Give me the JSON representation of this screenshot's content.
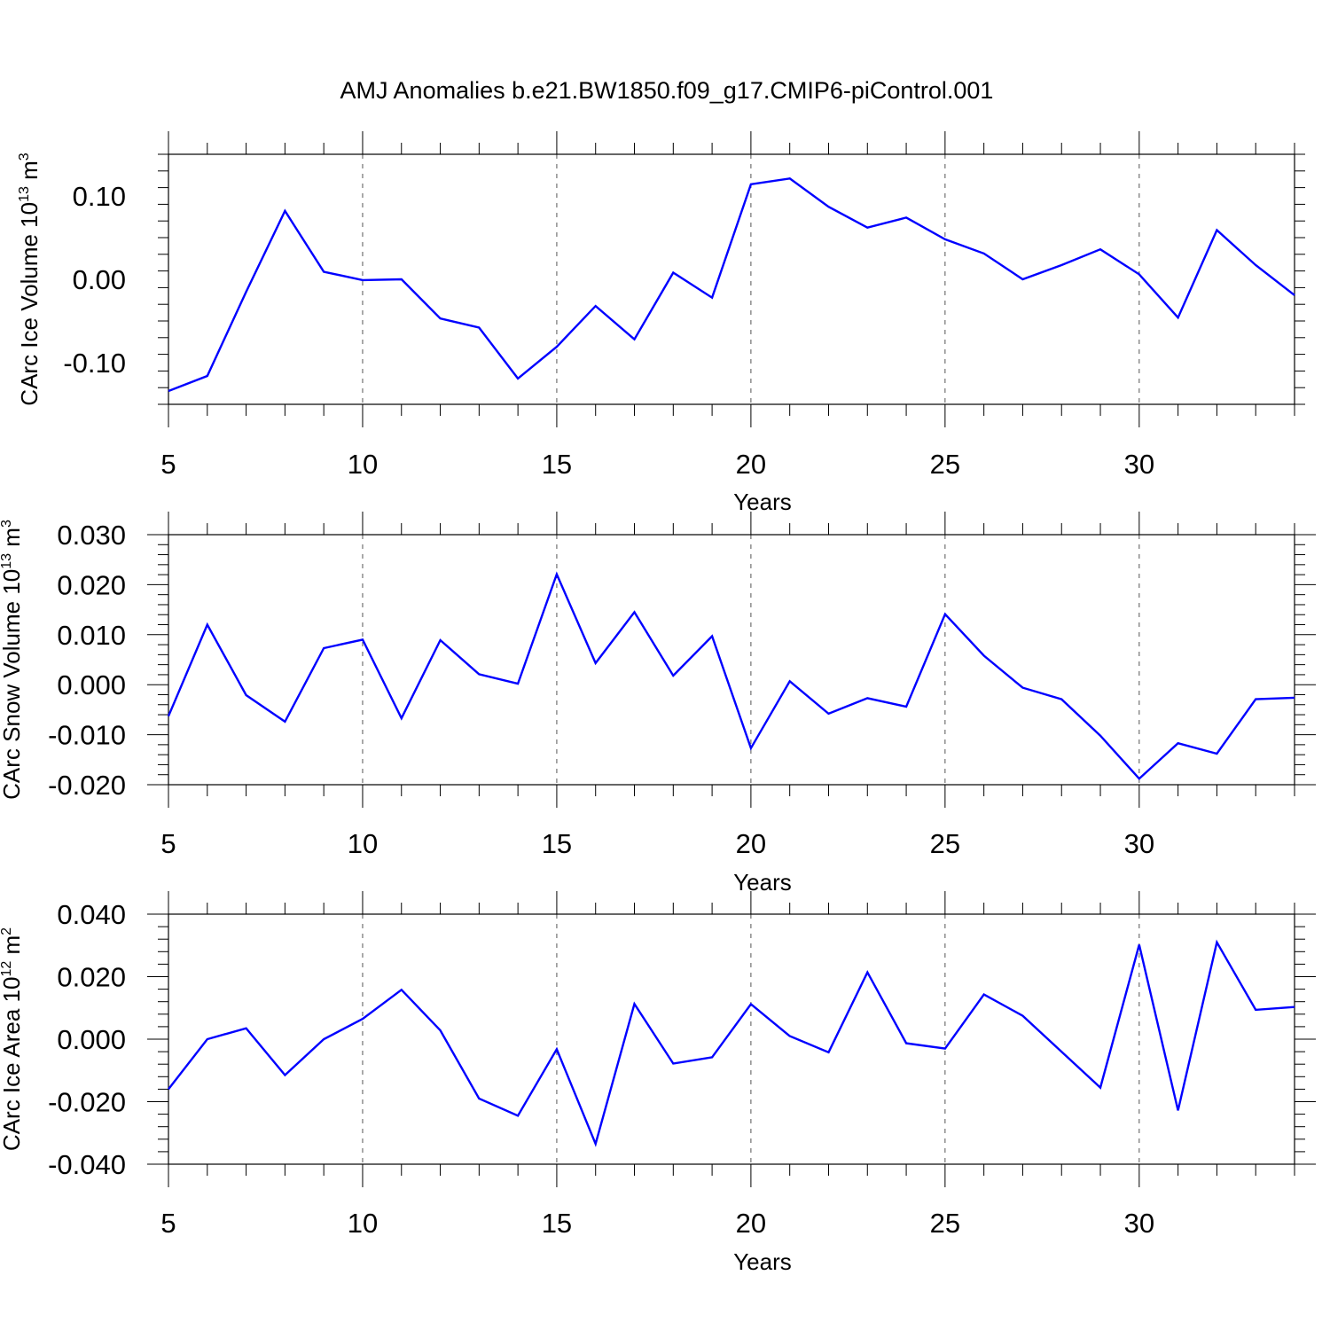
{
  "title": "AMJ Anomalies b.e21.BW1850.f09_g17.CMIP6-piControl.001",
  "chart_data": [
    {
      "type": "line",
      "title": "AMJ Anomalies b.e21.BW1850.f09_g17.CMIP6-piControl.001",
      "xlabel": "Years",
      "ylabel": {
        "prefix": "CArc Ice Volume 10",
        "exp": "13",
        "mid": " m",
        "unit_exp": "3"
      },
      "xlim": [
        5,
        34
      ],
      "ylim": [
        -0.15,
        0.15
      ],
      "xticks": [
        "5",
        "10",
        "15",
        "20",
        "25",
        "30"
      ],
      "xtick_values": [
        5,
        10,
        15,
        20,
        25,
        30
      ],
      "yticks": [
        "-0.10",
        "0.00",
        "0.10"
      ],
      "ytick_values": [
        -0.1,
        0.0,
        0.1
      ],
      "y_minor_step": 0.02,
      "x_minor_step": 1,
      "grid": "vertical dashed at major x ticks",
      "line_color": "#0000ff",
      "x": [
        5,
        6,
        7,
        8,
        9,
        10,
        11,
        12,
        13,
        14,
        15,
        16,
        17,
        18,
        19,
        20,
        21,
        22,
        23,
        24,
        25,
        26,
        27,
        28,
        29,
        30,
        31,
        32,
        33,
        34
      ],
      "values": [
        -0.134,
        -0.116,
        -0.015,
        0.082,
        0.009,
        -0.001,
        0.0,
        -0.047,
        -0.058,
        -0.119,
        -0.081,
        -0.032,
        -0.072,
        0.008,
        -0.022,
        0.114,
        0.121,
        0.087,
        0.062,
        0.074,
        0.048,
        0.031,
        0.0,
        0.017,
        0.036,
        0.006,
        -0.046,
        0.059,
        0.017,
        -0.019
      ]
    },
    {
      "type": "line",
      "xlabel": "Years",
      "ylabel": {
        "prefix": "CArc Snow Volume 10",
        "exp": "13",
        "mid": " m",
        "unit_exp": "3"
      },
      "xlim": [
        5,
        34
      ],
      "ylim": [
        -0.02,
        0.03
      ],
      "xticks": [
        "5",
        "10",
        "15",
        "20",
        "25",
        "30"
      ],
      "xtick_values": [
        5,
        10,
        15,
        20,
        25,
        30
      ],
      "yticks": [
        "-0.020",
        "-0.010",
        "0.000",
        "0.010",
        "0.020",
        "0.030"
      ],
      "ytick_values": [
        -0.02,
        -0.01,
        0.0,
        0.01,
        0.02,
        0.03
      ],
      "y_minor_step": 0.002,
      "x_minor_step": 1,
      "grid": "vertical dashed at major x ticks",
      "line_color": "#0000ff",
      "x": [
        5,
        6,
        7,
        8,
        9,
        10,
        11,
        12,
        13,
        14,
        15,
        16,
        17,
        18,
        19,
        20,
        21,
        22,
        23,
        24,
        25,
        26,
        27,
        28,
        29,
        30,
        31,
        32,
        33,
        34
      ],
      "values": [
        -0.0063,
        0.012,
        -0.0021,
        -0.0074,
        0.0073,
        0.009,
        -0.0067,
        0.0089,
        0.0021,
        0.0002,
        0.0221,
        0.0043,
        0.0145,
        0.0018,
        0.0097,
        -0.0127,
        0.0007,
        -0.0058,
        -0.0027,
        -0.0044,
        0.0141,
        0.0058,
        -0.0006,
        -0.0029,
        -0.0102,
        -0.0188,
        -0.0117,
        -0.0138,
        -0.0029,
        -0.0026
      ]
    },
    {
      "type": "line",
      "xlabel": "Years",
      "ylabel": {
        "prefix": "CArc Ice Area 10",
        "exp": "12",
        "mid": " m",
        "unit_exp": "2"
      },
      "xlim": [
        5,
        34
      ],
      "ylim": [
        -0.04,
        0.04
      ],
      "xticks": [
        "5",
        "10",
        "15",
        "20",
        "25",
        "30"
      ],
      "xtick_values": [
        5,
        10,
        15,
        20,
        25,
        30
      ],
      "yticks": [
        "-0.040",
        "-0.020",
        "0.000",
        "0.020",
        "0.040"
      ],
      "ytick_values": [
        -0.04,
        -0.02,
        0.0,
        0.02,
        0.04
      ],
      "y_minor_step": 0.004,
      "x_minor_step": 1,
      "grid": "vertical dashed at major x ticks",
      "line_color": "#0000ff",
      "x": [
        5,
        6,
        7,
        8,
        9,
        10,
        11,
        12,
        13,
        14,
        15,
        16,
        17,
        18,
        19,
        20,
        21,
        22,
        23,
        24,
        25,
        26,
        27,
        28,
        29,
        30,
        31,
        32,
        33,
        34
      ],
      "values": [
        -0.016,
        0.0,
        0.0035,
        -0.0115,
        0.0,
        0.0065,
        0.0158,
        0.0028,
        -0.019,
        -0.0245,
        -0.0032,
        -0.0335,
        0.0113,
        -0.0078,
        -0.0058,
        0.0112,
        0.001,
        -0.0042,
        0.0214,
        -0.0013,
        -0.003,
        0.0143,
        0.0075,
        -0.004,
        -0.0155,
        0.0302,
        -0.0228,
        0.031,
        0.0094,
        0.0103
      ]
    }
  ]
}
